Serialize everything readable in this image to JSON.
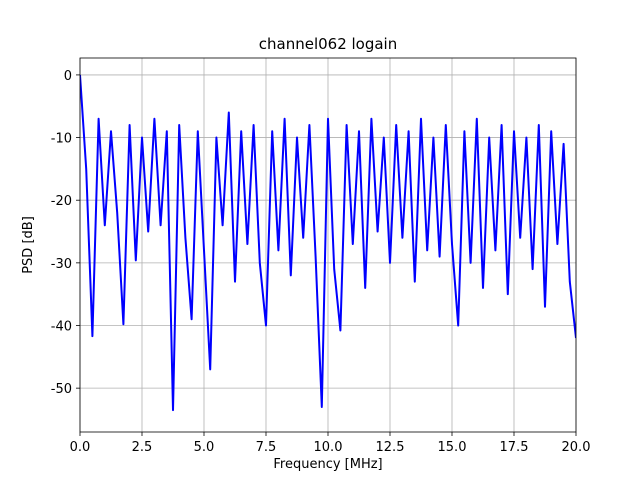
{
  "chart_data": {
    "type": "line",
    "title": "channel062 logain",
    "xlabel": "Frequency [MHz]",
    "ylabel": "PSD [dB]",
    "x": [
      0,
      0.25,
      0.5,
      0.75,
      1,
      1.25,
      1.5,
      1.75,
      2,
      2.25,
      2.5,
      2.75,
      3,
      3.25,
      3.5,
      3.75,
      4,
      4.25,
      4.5,
      4.75,
      5,
      5.25,
      5.5,
      5.75,
      6,
      6.25,
      6.5,
      6.75,
      7,
      7.25,
      7.5,
      7.75,
      8,
      8.25,
      8.5,
      8.75,
      9,
      9.25,
      9.5,
      9.75,
      10,
      10.25,
      10.5,
      10.75,
      11,
      11.25,
      11.5,
      11.75,
      12,
      12.25,
      12.5,
      12.75,
      13,
      13.25,
      13.5,
      13.75,
      14,
      14.25,
      14.5,
      14.75,
      15,
      15.25,
      15.5,
      15.75,
      16,
      16.25,
      16.5,
      16.75,
      17,
      17.25,
      17.5,
      17.75,
      18,
      18.25,
      18.5,
      18.75,
      19,
      19.25,
      19.5,
      19.75,
      20
    ],
    "series": [
      {
        "name": "channel062",
        "color": "#0000ff",
        "values": [
          0,
          -15,
          -41.7,
          -7,
          -24,
          -9,
          -22,
          -39.8,
          -8,
          -29.6,
          -10,
          -25,
          -7,
          -24,
          -9,
          -53.5,
          -8,
          -26,
          -39,
          -9,
          -28,
          -47,
          -10,
          -24,
          -6,
          -33,
          -9,
          -27,
          -8,
          -30,
          -40,
          -9,
          -28,
          -7,
          -32,
          -10,
          -26,
          -8,
          -29,
          -53,
          -7,
          -31,
          -40.8,
          -8,
          -27,
          -9,
          -34,
          -7,
          -25,
          -10,
          -30,
          -8,
          -26,
          -9,
          -33,
          -7,
          -28,
          -10,
          -29,
          -8,
          -27,
          -40,
          -9,
          -30,
          -7,
          -34,
          -10,
          -28,
          -8,
          -35,
          -9,
          -26,
          -10,
          -31,
          -8,
          -37,
          -9,
          -27,
          -11,
          -33,
          -42
        ]
      }
    ],
    "xlim": [
      0,
      20
    ],
    "xticks": [
      {
        "value": 0,
        "label": "0.0"
      },
      {
        "value": 2.5,
        "label": "2.5"
      },
      {
        "value": 5,
        "label": "5.0"
      },
      {
        "value": 7.5,
        "label": "7.5"
      },
      {
        "value": 10,
        "label": "10.0"
      },
      {
        "value": 12.5,
        "label": "12.5"
      },
      {
        "value": 15,
        "label": "15.0"
      },
      {
        "value": 17.5,
        "label": "17.5"
      },
      {
        "value": 20,
        "label": "20.0"
      }
    ],
    "ylim": [
      -57,
      2.7
    ],
    "yticks": [
      0,
      -10,
      -20,
      -30,
      -40,
      -50
    ],
    "grid": true
  }
}
